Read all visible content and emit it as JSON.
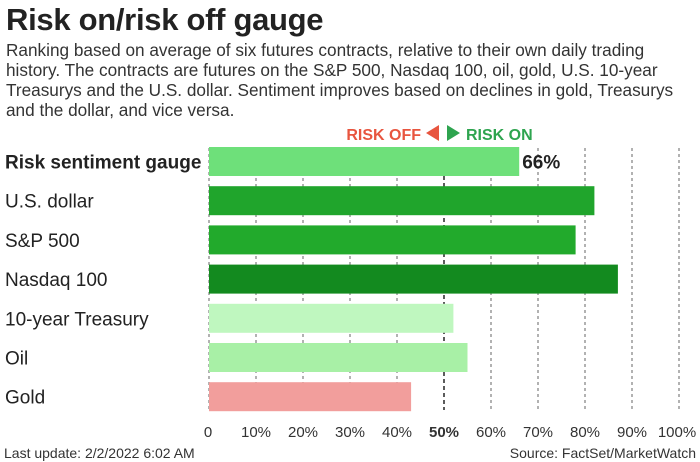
{
  "header": {
    "title": "Risk on/risk off gauge",
    "subtitle": "Ranking based on average of six futures contracts, relative to their own daily trading history. The contracts are futures on the S&P 500, Nasdaq 100, oil, gold, U.S. 10-year Treasurys and the U.S. dollar. Sentiment improves based on declines in gold, Treasurys and the dollar, and vice versa."
  },
  "legend": {
    "risk_off": "RISK OFF",
    "risk_on": "RISK ON",
    "risk_off_color": "#e8553f",
    "risk_on_color": "#2ea44f"
  },
  "footer": {
    "last_update": "Last update: 2/2/2022 6:02 AM",
    "source": "Source: FactSet/MarketWatch"
  },
  "chart_data": {
    "type": "bar",
    "orientation": "horizontal",
    "categories": [
      "Risk sentiment gauge",
      "U.S. dollar",
      "S&P 500",
      "Nasdaq 100",
      "10-year Treasury",
      "Oil",
      "Gold"
    ],
    "values": [
      66,
      82,
      78,
      87,
      52,
      55,
      43
    ],
    "colors": [
      "#6ee07a",
      "#20a52c",
      "#22aa2c",
      "#138a1f",
      "#bff7bf",
      "#a8f0a6",
      "#f29e9c"
    ],
    "value_label": "66%",
    "xlim": [
      0,
      100
    ],
    "x_ticks": [
      "0",
      "10%",
      "20%",
      "30%",
      "40%",
      "50%",
      "60%",
      "70%",
      "80%",
      "90%",
      "100%"
    ],
    "grid": "vertical dashed",
    "midpoint": 50
  }
}
